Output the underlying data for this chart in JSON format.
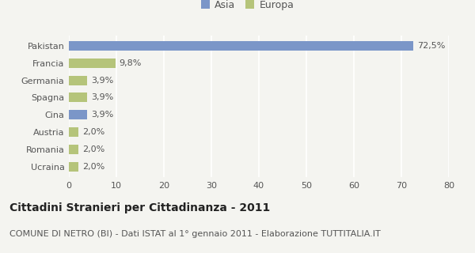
{
  "categories": [
    "Pakistan",
    "Francia",
    "Germania",
    "Spagna",
    "Cina",
    "Austria",
    "Romania",
    "Ucraina"
  ],
  "values": [
    72.5,
    9.8,
    3.9,
    3.9,
    3.9,
    2.0,
    2.0,
    2.0
  ],
  "labels": [
    "72,5%",
    "9,8%",
    "3,9%",
    "3,9%",
    "3,9%",
    "2,0%",
    "2,0%",
    "2,0%"
  ],
  "colors": [
    "#7b96c8",
    "#b5c47a",
    "#b5c47a",
    "#b5c47a",
    "#7b96c8",
    "#b5c47a",
    "#b5c47a",
    "#b5c47a"
  ],
  "legend": [
    {
      "label": "Asia",
      "color": "#7b96c8"
    },
    {
      "label": "Europa",
      "color": "#b5c47a"
    }
  ],
  "xlim": [
    0,
    80
  ],
  "xticks": [
    0,
    10,
    20,
    30,
    40,
    50,
    60,
    70,
    80
  ],
  "title": "Cittadini Stranieri per Cittadinanza - 2011",
  "subtitle": "COMUNE DI NETRO (BI) - Dati ISTAT al 1° gennaio 2011 - Elaborazione TUTTITALIA.IT",
  "background_color": "#f4f4f0",
  "grid_color": "#ffffff",
  "bar_height": 0.55,
  "title_fontsize": 10,
  "subtitle_fontsize": 8,
  "label_fontsize": 8,
  "tick_fontsize": 8
}
